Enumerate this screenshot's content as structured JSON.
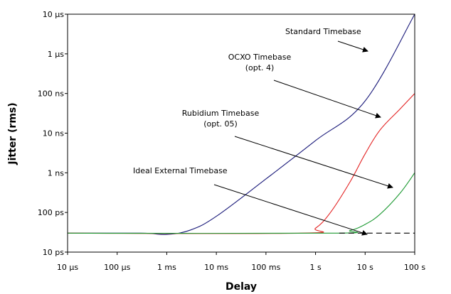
{
  "chart_data": {
    "type": "line",
    "xlabel": "Delay",
    "ylabel": "Jitter (rms)",
    "x_scale": "log",
    "y_scale": "log",
    "xlim": [
      1e-05,
      100
    ],
    "ylim": [
      1e-11,
      1e-05
    ],
    "grid": false,
    "legend": "none",
    "x_ticks": [
      {
        "value": 1e-05,
        "label": "10 µs"
      },
      {
        "value": 0.0001,
        "label": "100 µs"
      },
      {
        "value": 0.001,
        "label": "1 ms"
      },
      {
        "value": 0.01,
        "label": "10 ms"
      },
      {
        "value": 0.1,
        "label": "100 ms"
      },
      {
        "value": 1,
        "label": "1 s"
      },
      {
        "value": 10,
        "label": "10 s"
      },
      {
        "value": 100,
        "label": "100 s"
      }
    ],
    "y_ticks": [
      {
        "value": 1e-11,
        "label": "10 ps"
      },
      {
        "value": 1e-10,
        "label": "100 ps"
      },
      {
        "value": 1e-09,
        "label": "1 ns"
      },
      {
        "value": 1e-08,
        "label": "10 ns"
      },
      {
        "value": 1e-07,
        "label": "100 ns"
      },
      {
        "value": 1e-06,
        "label": "1 µs"
      },
      {
        "value": 1e-05,
        "label": "10 µs"
      }
    ],
    "series": [
      {
        "color": "#1a1a7a",
        "dash": "solid",
        "points": [
          [
            1e-05,
            3e-11
          ],
          [
            0.0003,
            3e-11
          ],
          [
            0.001,
            2.8e-11
          ],
          [
            0.003,
            3.6e-11
          ],
          [
            0.01,
            8e-11
          ],
          [
            0.1,
            7e-10
          ],
          [
            1,
            6.5e-09
          ],
          [
            10,
            6.5e-08
          ],
          [
            100,
            1e-05
          ]
        ]
      },
      {
        "color": "#e32222",
        "dash": "solid",
        "points": [
          [
            1e-05,
            3e-11
          ],
          [
            0.5,
            3e-11
          ],
          [
            1,
            4e-11
          ],
          [
            2,
            1e-10
          ],
          [
            5,
            6e-10
          ],
          [
            10,
            3e-09
          ],
          [
            20,
            1.2e-08
          ],
          [
            50,
            4e-08
          ],
          [
            100,
            1e-07
          ]
        ]
      },
      {
        "color": "#1e9a33",
        "dash": "solid",
        "points": [
          [
            1e-05,
            3e-11
          ],
          [
            2,
            3e-11
          ],
          [
            5,
            3.5e-11
          ],
          [
            10,
            5e-11
          ],
          [
            20,
            9e-11
          ],
          [
            50,
            3e-10
          ],
          [
            100,
            1e-09
          ]
        ]
      },
      {
        "color": "#000000",
        "dash": "dashed",
        "points": [
          [
            3,
            3e-11
          ],
          [
            100,
            3e-11
          ]
        ]
      }
    ],
    "annotations": [
      {
        "lines": [
          "Standard Timebase"
        ],
        "anchor": "start"
      },
      {
        "lines": [
          "OCXO Timebase",
          "(opt. 4)"
        ],
        "anchor": "middle"
      },
      {
        "lines": [
          "Rubidium Timebase",
          "(opt. 05)"
        ],
        "anchor": "middle"
      },
      {
        "lines": [
          "Ideal External Timebase"
        ],
        "anchor": "start"
      }
    ]
  }
}
